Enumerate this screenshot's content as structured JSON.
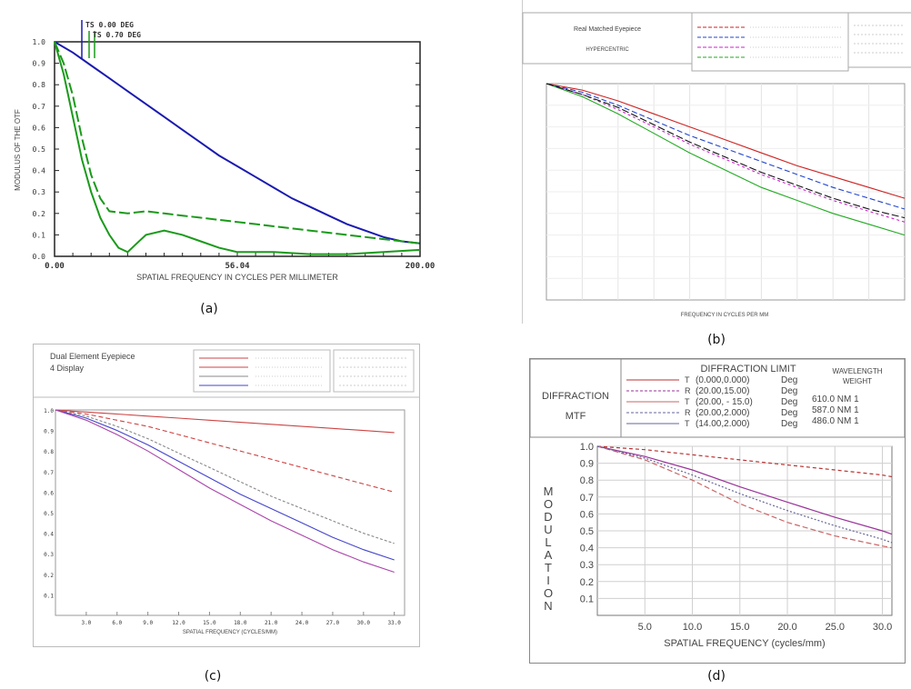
{
  "panels": {
    "a": {
      "caption": "(a)",
      "xlabel": "SPATIAL FREQUENCY IN CYCLES PER MILLIMETER",
      "ylabel": "MODULUS OF THE OTF",
      "legend": [
        "TS 0.00 DEG",
        "TS 0.70 DEG"
      ],
      "xticks": [
        "0.00",
        "56.04",
        "200.00"
      ]
    },
    "b": {
      "caption": "(b)",
      "title_box": "Real Matched Eyepiece",
      "subtitle_box": "HYPERCENTRIC",
      "footer": "FREQUENCY IN CYCLES PER MM"
    },
    "c": {
      "caption": "(c)",
      "title": "Dual Element Eyepiece",
      "subtitle": "4 Display",
      "xticks": [
        "3.0",
        "6.0",
        "9.0",
        "12.0",
        "15.0",
        "18.0",
        "21.0",
        "24.0",
        "27.0",
        "30.0",
        "33.0"
      ],
      "yticks": [
        "1.0",
        "0.9",
        "0.8",
        "0.7",
        "0.6",
        "0.5",
        "0.4",
        "0.3",
        "0.2",
        "0.1"
      ],
      "xlabel": "SPATIAL FREQUENCY (CYCLES/MM)"
    },
    "d": {
      "caption": "(d)",
      "box_title_line1": "DIFFRACTION",
      "box_title_line2": "MTF",
      "legend_header": "DIFFRACTION LIMIT",
      "legend_rows": [
        {
          "tag": "T",
          "pos": "(0.000,0.000)",
          "unit": "Deg"
        },
        {
          "tag": "R",
          "pos": "(20.00,15.00)",
          "unit": "Deg"
        },
        {
          "tag": "T",
          "pos": "(20.00, - 15.0)",
          "unit": "Deg"
        },
        {
          "tag": "R",
          "pos": "(20.00,2.000)",
          "unit": "Deg"
        },
        {
          "tag": "T",
          "pos": "(14.00,2.000)",
          "unit": "Deg"
        }
      ],
      "wavelength_header": "WAVELENGTH",
      "weight_header": "WEIGHT",
      "wavelengths": [
        "610.0 NM 1",
        "587.0 NM 1",
        "486.0 NM 1"
      ],
      "ylabel": "MODULATION",
      "xlabel": "SPATIAL FREQUENCY (cycles/mm)",
      "yticks": [
        "1.0",
        "0.9",
        "0.8",
        "0.7",
        "0.6",
        "0.5",
        "0.4",
        "0.3",
        "0.2",
        "0.1"
      ],
      "xticks": [
        "5.0",
        "10.0",
        "15.0",
        "20.0",
        "25.0",
        "30.0"
      ]
    }
  },
  "chart_data": [
    {
      "id": "a",
      "type": "line",
      "xlabel": "SPATIAL FREQUENCY IN CYCLES PER MILLIMETER",
      "ylabel": "MODULUS OF THE OTF",
      "xlim": [
        0,
        200
      ],
      "ylim": [
        0,
        1
      ],
      "series": [
        {
          "color": "#1a1ab0",
          "x": [
            0,
            10,
            20,
            30,
            40,
            50,
            60,
            70,
            80,
            90,
            100,
            110,
            120,
            130,
            140,
            150,
            160,
            170,
            180,
            190,
            200
          ],
          "y": [
            1.0,
            0.95,
            0.89,
            0.83,
            0.77,
            0.71,
            0.65,
            0.59,
            0.53,
            0.47,
            0.42,
            0.37,
            0.32,
            0.27,
            0.23,
            0.19,
            0.15,
            0.12,
            0.09,
            0.07,
            0.06
          ]
        },
        {
          "color": "#1a9a1a",
          "x": [
            0,
            5,
            10,
            15,
            20,
            25,
            30,
            40,
            50,
            60,
            70,
            80,
            90,
            100,
            120,
            140,
            160,
            180,
            200
          ],
          "y": [
            1.0,
            0.9,
            0.75,
            0.55,
            0.38,
            0.27,
            0.21,
            0.2,
            0.21,
            0.2,
            0.19,
            0.18,
            0.17,
            0.16,
            0.14,
            0.12,
            0.1,
            0.08,
            0.06
          ]
        },
        {
          "color": "#1a9a1a",
          "x": [
            0,
            5,
            10,
            15,
            20,
            25,
            30,
            35,
            40,
            45,
            50,
            60,
            70,
            80,
            90,
            100,
            120,
            140,
            160,
            180,
            200
          ],
          "y": [
            1.0,
            0.85,
            0.65,
            0.45,
            0.3,
            0.18,
            0.1,
            0.04,
            0.02,
            0.06,
            0.1,
            0.12,
            0.1,
            0.07,
            0.04,
            0.02,
            0.02,
            0.01,
            0.01,
            0.02,
            0.03
          ]
        }
      ]
    },
    {
      "id": "b",
      "type": "line",
      "xlim": [
        0,
        50
      ],
      "ylim": [
        0,
        1
      ],
      "series": [
        {
          "color": "#cc2222",
          "x": [
            0,
            5,
            10,
            15,
            20,
            25,
            30,
            35,
            40,
            45,
            50
          ],
          "y": [
            1.0,
            0.97,
            0.92,
            0.86,
            0.8,
            0.74,
            0.68,
            0.62,
            0.57,
            0.52,
            0.47
          ]
        },
        {
          "color": "#2244cc",
          "x": [
            0,
            5,
            10,
            15,
            20,
            25,
            30,
            35,
            40,
            45,
            50
          ],
          "y": [
            1.0,
            0.96,
            0.9,
            0.83,
            0.76,
            0.7,
            0.64,
            0.58,
            0.52,
            0.47,
            0.42
          ]
        },
        {
          "color": "#cc22cc",
          "x": [
            0,
            5,
            10,
            15,
            20,
            25,
            30,
            35,
            40,
            45,
            50
          ],
          "y": [
            1.0,
            0.95,
            0.88,
            0.8,
            0.72,
            0.65,
            0.58,
            0.52,
            0.46,
            0.41,
            0.36
          ]
        },
        {
          "color": "#22aa22",
          "x": [
            0,
            5,
            10,
            15,
            20,
            25,
            30,
            35,
            40,
            45,
            50
          ],
          "y": [
            1.0,
            0.94,
            0.86,
            0.77,
            0.68,
            0.6,
            0.52,
            0.46,
            0.4,
            0.35,
            0.3
          ]
        },
        {
          "color": "#111111",
          "x": [
            0,
            5,
            10,
            15,
            20,
            25,
            30,
            35,
            40,
            45,
            50
          ],
          "y": [
            1.0,
            0.95,
            0.89,
            0.81,
            0.73,
            0.66,
            0.59,
            0.53,
            0.47,
            0.42,
            0.38
          ]
        }
      ]
    },
    {
      "id": "c",
      "type": "line",
      "xlabel": "SPATIAL FREQUENCY (CYCLES/MM)",
      "xlim": [
        0,
        34
      ],
      "ylim": [
        0,
        1
      ],
      "series": [
        {
          "color": "#cc4444",
          "x": [
            0,
            3,
            6,
            9,
            12,
            15,
            18,
            21,
            24,
            27,
            30,
            33
          ],
          "y": [
            1.0,
            0.99,
            0.98,
            0.97,
            0.96,
            0.95,
            0.94,
            0.93,
            0.92,
            0.91,
            0.9,
            0.89
          ]
        },
        {
          "color": "#cc4444",
          "x": [
            0,
            3,
            6,
            9,
            12,
            15,
            18,
            21,
            24,
            27,
            30,
            33
          ],
          "y": [
            1.0,
            0.98,
            0.95,
            0.92,
            0.88,
            0.84,
            0.8,
            0.76,
            0.72,
            0.68,
            0.64,
            0.6
          ]
        },
        {
          "color": "#888888",
          "x": [
            0,
            3,
            6,
            9,
            12,
            15,
            18,
            21,
            24,
            27,
            30,
            33
          ],
          "y": [
            1.0,
            0.97,
            0.92,
            0.86,
            0.79,
            0.72,
            0.65,
            0.58,
            0.52,
            0.46,
            0.4,
            0.35
          ]
        },
        {
          "color": "#4444cc",
          "x": [
            0,
            3,
            6,
            9,
            12,
            15,
            18,
            21,
            24,
            27,
            30,
            33
          ],
          "y": [
            1.0,
            0.96,
            0.9,
            0.83,
            0.75,
            0.67,
            0.59,
            0.52,
            0.45,
            0.38,
            0.32,
            0.27
          ]
        },
        {
          "color": "#aa44aa",
          "x": [
            0,
            3,
            6,
            9,
            12,
            15,
            18,
            21,
            24,
            27,
            30,
            33
          ],
          "y": [
            1.0,
            0.95,
            0.88,
            0.8,
            0.71,
            0.62,
            0.54,
            0.46,
            0.39,
            0.32,
            0.26,
            0.21
          ]
        }
      ]
    },
    {
      "id": "d",
      "type": "line",
      "xlabel": "SPATIAL FREQUENCY (cycles/mm)",
      "ylabel": "MODULATION",
      "xlim": [
        0,
        31
      ],
      "ylim": [
        0,
        1
      ],
      "series": [
        {
          "name": "DIFFRACTION LIMIT",
          "color": "#bb3333",
          "x": [
            0,
            5,
            10,
            15,
            20,
            25,
            30,
            31
          ],
          "y": [
            1.0,
            0.98,
            0.95,
            0.92,
            0.89,
            0.86,
            0.83,
            0.82
          ]
        },
        {
          "color": "#993399",
          "x": [
            0,
            5,
            10,
            15,
            20,
            25,
            30,
            31
          ],
          "y": [
            1.0,
            0.94,
            0.86,
            0.76,
            0.67,
            0.58,
            0.5,
            0.48
          ]
        },
        {
          "color": "#cc6666",
          "x": [
            0,
            5,
            10,
            15,
            20,
            25,
            30,
            31
          ],
          "y": [
            1.0,
            0.92,
            0.8,
            0.66,
            0.55,
            0.47,
            0.41,
            0.4
          ]
        },
        {
          "color": "#666699",
          "x": [
            0,
            5,
            10,
            15,
            20,
            25,
            30,
            31
          ],
          "y": [
            1.0,
            0.93,
            0.83,
            0.72,
            0.62,
            0.53,
            0.45,
            0.43
          ]
        }
      ]
    }
  ]
}
